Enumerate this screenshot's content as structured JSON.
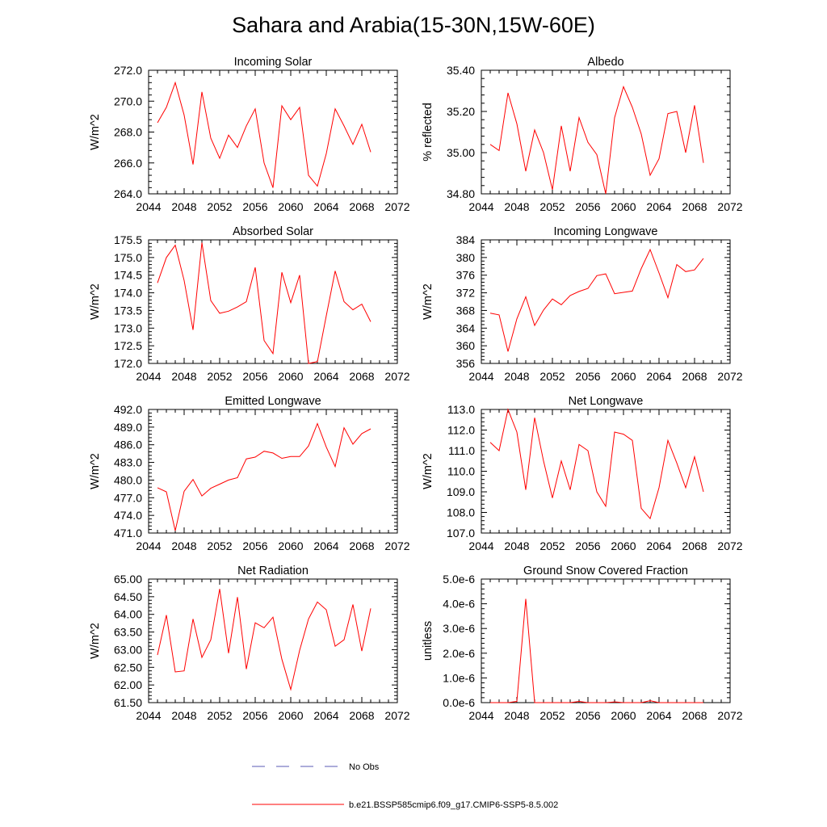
{
  "figure": {
    "title": "Sahara and Arabia(15-30N,15W-60E)",
    "series_color": "#ff0000",
    "obs_color": "#5a5ab4"
  },
  "legend": {
    "obs_label": "No Obs",
    "model_label": "b.e21.BSSP585cmip6.f09_g17.CMIP6-SSP5-8.5.002"
  },
  "chart_data": [
    {
      "type": "line",
      "title": "Incoming Solar",
      "ylabel": "W/m^2",
      "xlim": [
        2044,
        2072
      ],
      "ylim": [
        264.0,
        272.0
      ],
      "xticks": [
        "2044",
        "2048",
        "2052",
        "2056",
        "2060",
        "2064",
        "2068",
        "2072"
      ],
      "yticks": [
        "264.0",
        "266.0",
        "268.0",
        "270.0",
        "272.0"
      ],
      "x": [
        2045,
        2046,
        2047,
        2048,
        2049,
        2050,
        2051,
        2052,
        2053,
        2054,
        2055,
        2056,
        2057,
        2058,
        2059,
        2060,
        2061,
        2062,
        2063,
        2064,
        2065,
        2066,
        2067,
        2068,
        2069
      ],
      "values": [
        268.6,
        269.6,
        271.2,
        269.1,
        265.9,
        270.6,
        267.6,
        266.3,
        267.8,
        267.0,
        268.4,
        269.5,
        266.0,
        264.4,
        269.7,
        268.8,
        269.6,
        265.2,
        264.5,
        266.6,
        269.5,
        268.4,
        267.2,
        268.5,
        266.7
      ]
    },
    {
      "type": "line",
      "title": "Albedo",
      "ylabel": "% reflected",
      "xlim": [
        2044,
        2072
      ],
      "ylim": [
        34.8,
        35.4
      ],
      "xticks": [
        "2044",
        "2048",
        "2052",
        "2056",
        "2060",
        "2064",
        "2068",
        "2072"
      ],
      "yticks": [
        "34.80",
        "35.00",
        "35.20",
        "35.40"
      ],
      "x": [
        2045,
        2046,
        2047,
        2048,
        2049,
        2050,
        2051,
        2052,
        2053,
        2054,
        2055,
        2056,
        2057,
        2058,
        2059,
        2060,
        2061,
        2062,
        2063,
        2064,
        2065,
        2066,
        2067,
        2068,
        2069
      ],
      "values": [
        35.04,
        35.01,
        35.29,
        35.14,
        34.91,
        35.11,
        35.0,
        34.82,
        35.13,
        34.91,
        35.17,
        35.05,
        34.99,
        34.8,
        35.17,
        35.32,
        35.22,
        35.09,
        34.89,
        34.97,
        35.19,
        35.2,
        35.0,
        35.23,
        34.95
      ]
    },
    {
      "type": "line",
      "title": "Absorbed Solar",
      "ylabel": "W/m^2",
      "xlim": [
        2044,
        2072
      ],
      "ylim": [
        172.0,
        175.5
      ],
      "xticks": [
        "2044",
        "2048",
        "2052",
        "2056",
        "2060",
        "2064",
        "2068",
        "2072"
      ],
      "yticks": [
        "172.0",
        "172.5",
        "173.0",
        "173.5",
        "174.0",
        "174.5",
        "175.0",
        "175.5"
      ],
      "x": [
        2045,
        2046,
        2047,
        2048,
        2049,
        2050,
        2051,
        2052,
        2053,
        2054,
        2055,
        2056,
        2057,
        2058,
        2059,
        2060,
        2061,
        2062,
        2063,
        2064,
        2065,
        2066,
        2067,
        2068,
        2069
      ],
      "values": [
        174.28,
        175.0,
        175.35,
        174.35,
        172.95,
        175.42,
        173.78,
        173.42,
        173.48,
        173.6,
        173.75,
        174.72,
        172.65,
        172.28,
        174.58,
        173.72,
        174.5,
        172.0,
        172.05,
        173.35,
        174.62,
        173.75,
        173.52,
        173.68,
        173.18
      ]
    },
    {
      "type": "line",
      "title": "Incoming Longwave",
      "ylabel": "W/m^2",
      "xlim": [
        2044,
        2072
      ],
      "ylim": [
        356,
        384
      ],
      "xticks": [
        "2044",
        "2048",
        "2052",
        "2056",
        "2060",
        "2064",
        "2068",
        "2072"
      ],
      "yticks": [
        "356",
        "360",
        "364",
        "368",
        "372",
        "376",
        "380",
        "384"
      ],
      "x": [
        2045,
        2046,
        2047,
        2048,
        2049,
        2050,
        2051,
        2052,
        2053,
        2054,
        2055,
        2056,
        2057,
        2058,
        2059,
        2060,
        2061,
        2062,
        2063,
        2064,
        2065,
        2066,
        2067,
        2068,
        2069
      ],
      "values": [
        367.4,
        367.0,
        358.7,
        366.1,
        371.1,
        364.6,
        368.1,
        370.6,
        369.3,
        371.4,
        372.3,
        373.0,
        375.9,
        376.3,
        371.8,
        372.1,
        372.4,
        377.5,
        381.8,
        376.5,
        370.9,
        378.4,
        376.8,
        377.2,
        379.8
      ]
    },
    {
      "type": "line",
      "title": "Emitted Longwave",
      "ylabel": "W/m^2",
      "xlim": [
        2044,
        2072
      ],
      "ylim": [
        471.0,
        492.0
      ],
      "xticks": [
        "2044",
        "2048",
        "2052",
        "2056",
        "2060",
        "2064",
        "2068",
        "2072"
      ],
      "yticks": [
        "471.0",
        "474.0",
        "477.0",
        "480.0",
        "483.0",
        "486.0",
        "489.0",
        "492.0"
      ],
      "x": [
        2045,
        2046,
        2047,
        2048,
        2049,
        2050,
        2051,
        2052,
        2053,
        2054,
        2055,
        2056,
        2057,
        2058,
        2059,
        2060,
        2061,
        2062,
        2063,
        2064,
        2065,
        2066,
        2067,
        2068,
        2069
      ],
      "values": [
        478.7,
        478.0,
        471.4,
        478.1,
        480.1,
        477.3,
        478.6,
        479.3,
        480.0,
        480.4,
        483.6,
        483.9,
        484.9,
        484.6,
        483.7,
        484.0,
        484.0,
        485.8,
        489.6,
        485.6,
        482.3,
        488.9,
        486.1,
        487.9,
        488.7
      ]
    },
    {
      "type": "line",
      "title": "Net Longwave",
      "ylabel": "W/m^2",
      "xlim": [
        2044,
        2072
      ],
      "ylim": [
        107.0,
        113.0
      ],
      "xticks": [
        "2044",
        "2048",
        "2052",
        "2056",
        "2060",
        "2064",
        "2068",
        "2072"
      ],
      "yticks": [
        "107.0",
        "108.0",
        "109.0",
        "110.0",
        "111.0",
        "112.0",
        "113.0"
      ],
      "x": [
        2045,
        2046,
        2047,
        2048,
        2049,
        2050,
        2051,
        2052,
        2053,
        2054,
        2055,
        2056,
        2057,
        2058,
        2059,
        2060,
        2061,
        2062,
        2063,
        2064,
        2065,
        2066,
        2067,
        2068,
        2069
      ],
      "values": [
        111.4,
        111.0,
        113.0,
        111.9,
        109.1,
        112.6,
        110.5,
        108.7,
        110.5,
        109.1,
        111.3,
        111.0,
        109.0,
        108.3,
        111.9,
        111.8,
        111.5,
        108.2,
        107.7,
        109.2,
        111.5,
        110.4,
        109.2,
        110.7,
        109.0
      ]
    },
    {
      "type": "line",
      "title": "Net Radiation",
      "ylabel": "W/m^2",
      "xlim": [
        2044,
        2072
      ],
      "ylim": [
        61.5,
        65.0
      ],
      "xticks": [
        "2044",
        "2048",
        "2052",
        "2056",
        "2060",
        "2064",
        "2068",
        "2072"
      ],
      "yticks": [
        "61.50",
        "62.00",
        "62.50",
        "63.00",
        "63.50",
        "64.00",
        "64.50",
        "65.00"
      ],
      "x": [
        2045,
        2046,
        2047,
        2048,
        2049,
        2050,
        2051,
        2052,
        2053,
        2054,
        2055,
        2056,
        2057,
        2058,
        2059,
        2060,
        2061,
        2062,
        2063,
        2064,
        2065,
        2066,
        2067,
        2068,
        2069
      ],
      "values": [
        62.85,
        63.98,
        62.37,
        62.4,
        63.87,
        62.78,
        63.28,
        64.72,
        62.9,
        64.49,
        62.45,
        63.76,
        63.62,
        63.92,
        62.73,
        61.87,
        62.98,
        63.87,
        64.35,
        64.13,
        63.1,
        63.28,
        64.28,
        62.96,
        64.17
      ]
    },
    {
      "type": "line",
      "title": "Ground Snow Covered Fraction",
      "ylabel": "unitless",
      "xlim": [
        2044,
        2072
      ],
      "ylim": [
        0.0,
        5e-06
      ],
      "xticks": [
        "2044",
        "2048",
        "2052",
        "2056",
        "2060",
        "2064",
        "2068",
        "2072"
      ],
      "yticks": [
        "0.0e-6",
        "1.0e-6",
        "2.0e-6",
        "3.0e-6",
        "4.0e-6",
        "5.0e-6"
      ],
      "x": [
        2045,
        2046,
        2047,
        2048,
        2049,
        2050,
        2051,
        2052,
        2053,
        2054,
        2055,
        2056,
        2057,
        2058,
        2059,
        2060,
        2061,
        2062,
        2063,
        2064,
        2065,
        2066,
        2067,
        2068,
        2069
      ],
      "values": [
        0.0,
        0.0,
        0.0,
        5e-08,
        4.2e-06,
        0.0,
        0.0,
        0.0,
        0.0,
        0.0,
        5e-08,
        0.0,
        0.0,
        0.0,
        3e-08,
        0.0,
        0.0,
        0.0,
        8e-08,
        0.0,
        0.0,
        0.0,
        0.0,
        0.0,
        0.0
      ]
    }
  ]
}
